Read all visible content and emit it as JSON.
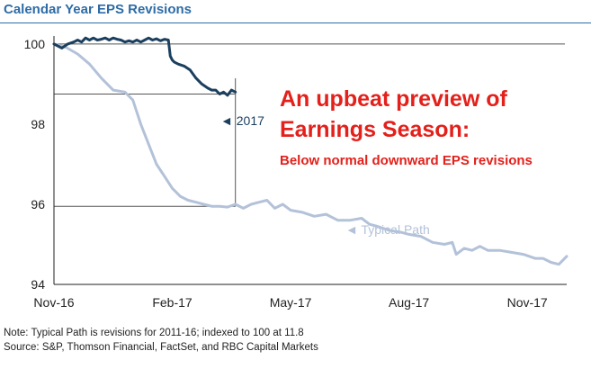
{
  "page": {
    "title": "Calendar Year EPS Revisions",
    "headline_line1": "An upbeat preview of",
    "headline_line2": "Earnings Season:",
    "headline_sub": "Below normal downward EPS revisions",
    "note": "Note: Typical Path is revisions for 2011-16; indexed to 100 at 11.8",
    "source": "Source: S&P, Thomson Financial, FactSet, and RBC Capital Markets"
  },
  "colors": {
    "title": "#2e6ca6",
    "series_2017": "#1b3f5e",
    "series_typical": "#b3c2d9",
    "headline": "#e3201b",
    "axis": "#222222"
  },
  "chart_data": {
    "type": "line",
    "title": "Calendar Year EPS Revisions",
    "xlabel": "",
    "ylabel": "",
    "xlim": [
      0,
      13
    ],
    "ylim": [
      94,
      100.2
    ],
    "x_ticks": [
      {
        "label": "Nov-16",
        "value": 0
      },
      {
        "label": "Feb-17",
        "value": 3
      },
      {
        "label": "May-17",
        "value": 6
      },
      {
        "label": "Aug-17",
        "value": 9
      },
      {
        "label": "Nov-17",
        "value": 12
      }
    ],
    "y_ticks": [
      {
        "label": "94",
        "value": 94
      },
      {
        "label": "96",
        "value": 96
      },
      {
        "label": "98",
        "value": 98
      },
      {
        "label": "100",
        "value": 100
      }
    ],
    "reference_lines": {
      "y_100": 100,
      "y_2017_level": 98.75,
      "y_typical_level": 95.95,
      "x_marker": 4.6
    },
    "series": [
      {
        "name": "2017",
        "label": "◄ 2017",
        "x": [
          0,
          0.1,
          0.2,
          0.35,
          0.5,
          0.6,
          0.7,
          0.8,
          0.9,
          1.0,
          1.1,
          1.2,
          1.3,
          1.4,
          1.5,
          1.6,
          1.7,
          1.8,
          1.9,
          2.0,
          2.1,
          2.2,
          2.3,
          2.4,
          2.5,
          2.6,
          2.7,
          2.8,
          2.9,
          2.95,
          3.0,
          3.05,
          3.15,
          3.3,
          3.45,
          3.6,
          3.75,
          3.9,
          4.0,
          4.1,
          4.2,
          4.3,
          4.4,
          4.5,
          4.6
        ],
        "values": [
          100,
          99.95,
          99.9,
          100.0,
          100.05,
          100.1,
          100.05,
          100.15,
          100.1,
          100.15,
          100.1,
          100.12,
          100.15,
          100.1,
          100.15,
          100.12,
          100.1,
          100.05,
          100.08,
          100.05,
          100.1,
          100.05,
          100.1,
          100.15,
          100.1,
          100.13,
          100.08,
          100.12,
          100.1,
          99.7,
          99.6,
          99.55,
          99.5,
          99.45,
          99.35,
          99.15,
          99.0,
          98.9,
          98.85,
          98.85,
          98.75,
          98.8,
          98.72,
          98.85,
          98.8
        ]
      },
      {
        "name": "Typical Path",
        "label": "◄ Typical Path",
        "x": [
          0,
          0.3,
          0.6,
          0.9,
          1.2,
          1.5,
          1.8,
          2.0,
          2.2,
          2.4,
          2.6,
          2.8,
          3.0,
          3.2,
          3.4,
          3.6,
          3.8,
          4.0,
          4.2,
          4.4,
          4.6,
          4.8,
          5.0,
          5.2,
          5.4,
          5.6,
          5.8,
          6.0,
          6.3,
          6.6,
          6.9,
          7.2,
          7.5,
          7.8,
          8.0,
          8.2,
          8.5,
          8.8,
          9.0,
          9.3,
          9.6,
          9.9,
          10.1,
          10.2,
          10.4,
          10.6,
          10.8,
          11.0,
          11.3,
          11.6,
          11.9,
          12.2,
          12.4,
          12.6,
          12.8,
          12.9,
          13.0
        ],
        "values": [
          100,
          99.92,
          99.75,
          99.5,
          99.15,
          98.85,
          98.8,
          98.6,
          98.0,
          97.5,
          97.0,
          96.7,
          96.4,
          96.2,
          96.1,
          96.05,
          96.0,
          95.95,
          95.95,
          95.93,
          96.0,
          95.9,
          96.0,
          96.05,
          96.1,
          95.9,
          96.0,
          95.85,
          95.8,
          95.7,
          95.75,
          95.6,
          95.6,
          95.65,
          95.5,
          95.45,
          95.35,
          95.3,
          95.25,
          95.2,
          95.05,
          95.0,
          95.05,
          94.75,
          94.9,
          94.85,
          94.95,
          94.85,
          94.85,
          94.8,
          94.75,
          94.65,
          94.65,
          94.55,
          94.5,
          94.6,
          94.7
        ]
      }
    ]
  }
}
